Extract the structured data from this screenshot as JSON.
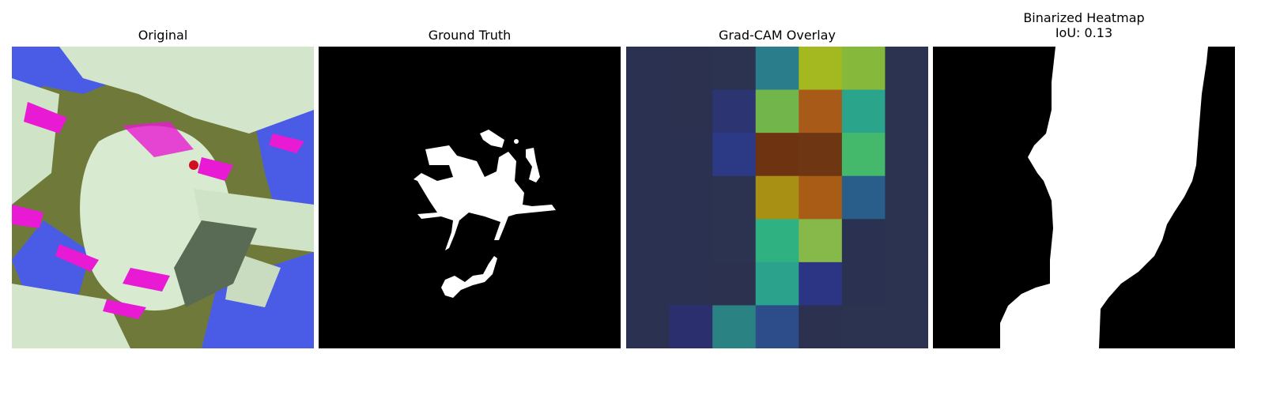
{
  "figure": {
    "panels": [
      {
        "title": "Original"
      },
      {
        "title": "Ground Truth"
      },
      {
        "title": "Grad-CAM Overlay"
      },
      {
        "title_line1": "Binarized Heatmap",
        "title_line2": "IoU: 0.13"
      }
    ],
    "iou": 0.13
  },
  "colors": {
    "background": "#ffffff",
    "mask_foreground": "#ffffff",
    "mask_background": "#000000",
    "leaf_pale_green": "#d7ead0",
    "magenta_spots": "#e91ad3",
    "blue_regions": "#4a5be6",
    "olive_background": "#6f7a3a"
  },
  "gradcam": {
    "grid_rows": 7,
    "grid_cols": 7,
    "colormap": "jet-like (viridis/brown) overlay",
    "cells": [
      [
        "#2b3150",
        "#2c3150",
        "#2c3350",
        "#2a7d8a",
        "#a4b81f",
        "#86b83c",
        "#2c3350"
      ],
      [
        "#2b3150",
        "#2c3150",
        "#2c3472",
        "#72b54a",
        "#a85a18",
        "#2ba48c",
        "#2c3350"
      ],
      [
        "#2b3150",
        "#2b3150",
        "#2c3a86",
        "#6e3412",
        "#6e3612",
        "#44b96c",
        "#2c3350"
      ],
      [
        "#2b3150",
        "#2b3150",
        "#2c3350",
        "#a89014",
        "#a85c16",
        "#2a5e8a",
        "#2c3350"
      ],
      [
        "#2b3150",
        "#2b3150",
        "#2c3350",
        "#2fb182",
        "#86b84a",
        "#2b3150",
        "#2c3350"
      ],
      [
        "#2b3150",
        "#2b3150",
        "#2c3150",
        "#2ba28c",
        "#2c3484",
        "#2b3150",
        "#2c3350"
      ],
      [
        "#2b3150",
        "#2c2f6e",
        "#2b8282",
        "#2c4c8a",
        "#2c3150",
        "#2c3350",
        "#2c3350"
      ]
    ]
  }
}
